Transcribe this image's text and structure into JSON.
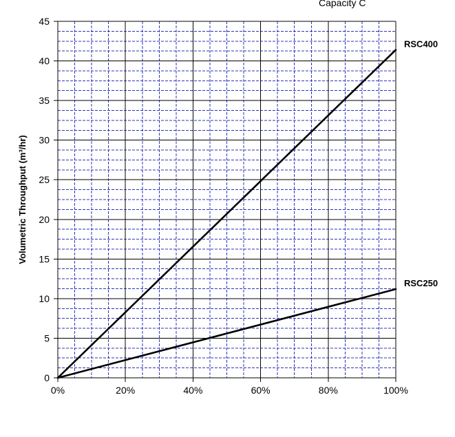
{
  "corner_text": "Capacity C",
  "chart_data": {
    "type": "line",
    "title": "",
    "xlabel": "",
    "ylabel": "Volumetric Throughput (m³/hr)",
    "xlim": [
      0,
      100
    ],
    "ylim": [
      0,
      45
    ],
    "x_ticks": [
      0,
      20,
      40,
      60,
      80,
      100
    ],
    "x_tick_labels": [
      "0%",
      "20%",
      "40%",
      "60%",
      "80%",
      "100%"
    ],
    "y_ticks": [
      0,
      5,
      10,
      15,
      20,
      25,
      30,
      35,
      40,
      45
    ],
    "y_tick_labels": [
      "0",
      "5",
      "10",
      "15",
      "20",
      "25",
      "30",
      "35",
      "40",
      "45"
    ],
    "grid": true,
    "colors": {
      "major_grid": "#000000",
      "minor_grid": "#2b33b8",
      "series_line": "#000000"
    },
    "series": [
      {
        "name": "RSC400",
        "x": [
          0,
          100
        ],
        "y": [
          0,
          41.4
        ]
      },
      {
        "name": "RSC250",
        "x": [
          0,
          100
        ],
        "y": [
          0,
          11.2
        ]
      }
    ]
  }
}
